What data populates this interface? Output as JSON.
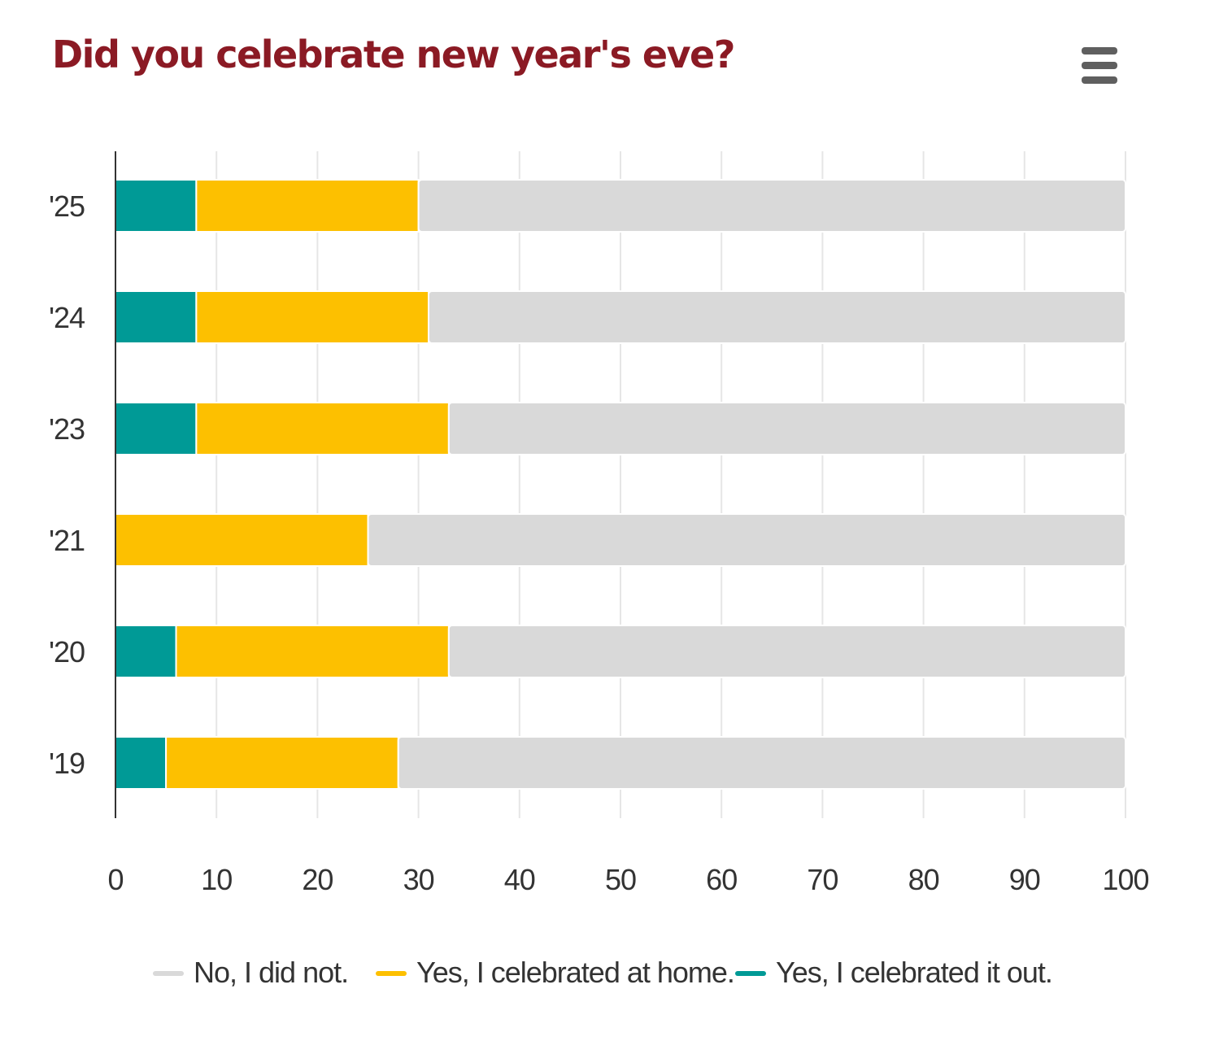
{
  "title": "Did you celebrate new year's eve?",
  "menu": {
    "icon": "hamburger-menu-icon"
  },
  "colors": {
    "title": "#8b1a24",
    "no": "#d9d9d9",
    "home": "#fdc000",
    "out": "#009a96",
    "grid": "#e6e6e6",
    "axis": "#333333",
    "text": "#333333"
  },
  "chart_data": {
    "type": "bar",
    "orientation": "horizontal",
    "stacked": true,
    "title": "Did you celebrate new year's eve?",
    "categories": [
      "'25",
      "'24",
      "'23",
      "'21",
      "'20",
      "'19"
    ],
    "series": [
      {
        "name": "Yes, I celebrated it out.",
        "color": "#009a96",
        "values": [
          8,
          8,
          8,
          0,
          6,
          5
        ]
      },
      {
        "name": "Yes, I celebrated at home.",
        "color": "#fdc000",
        "values": [
          22,
          23,
          25,
          25,
          27,
          23
        ]
      },
      {
        "name": "No, I did not.",
        "color": "#d9d9d9",
        "values": [
          70,
          69,
          67,
          75,
          67,
          72
        ]
      }
    ],
    "xlim": [
      0,
      100
    ],
    "xticks": [
      "0",
      "10",
      "20",
      "30",
      "40",
      "50",
      "60",
      "70",
      "80",
      "90",
      "100"
    ],
    "xlabel": "",
    "ylabel": "",
    "grid": true,
    "legend": {
      "position": "bottom",
      "entries": [
        "No, I did not.",
        "Yes, I celebrated at home.",
        "Yes, I celebrated it out."
      ]
    }
  }
}
